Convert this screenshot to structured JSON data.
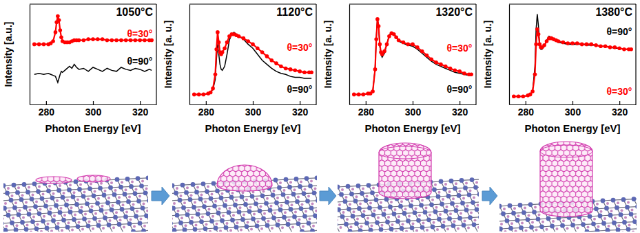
{
  "chart_data": [
    {
      "type": "line",
      "title": "1050°C",
      "x_label": "Photon Energy [eV]",
      "y_label": "Intensity [a.u.]",
      "x": [
        275,
        277,
        279,
        281,
        282,
        283,
        284,
        284.5,
        285,
        285.5,
        286,
        286.5,
        287,
        288,
        289,
        290,
        291,
        292,
        293,
        294,
        296,
        298,
        300,
        302,
        304,
        306,
        308,
        310,
        312,
        314,
        316,
        318,
        320,
        322,
        324,
        325
      ],
      "xlim": [
        273,
        327
      ],
      "xticks": [
        280,
        300,
        320
      ],
      "ylim": [
        0,
        1
      ],
      "tick_labels": "x",
      "series": [
        {
          "name": "θ=30°",
          "color": "#ff0000",
          "marker": "circle",
          "line_style": "solid",
          "values": [
            0.6,
            0.6,
            0.6,
            0.6,
            0.61,
            0.63,
            0.72,
            0.82,
            0.88,
            0.84,
            0.74,
            0.67,
            0.63,
            0.62,
            0.62,
            0.62,
            0.63,
            0.64,
            0.64,
            0.64,
            0.64,
            0.65,
            0.65,
            0.65,
            0.65,
            0.64,
            0.64,
            0.64,
            0.64,
            0.64,
            0.64,
            0.64,
            0.64,
            0.64,
            0.64,
            0.64
          ]
        },
        {
          "name": "θ=90°",
          "color": "#000000",
          "line_style": "solid",
          "values": [
            0.3,
            0.31,
            0.3,
            0.31,
            0.3,
            0.29,
            0.28,
            0.25,
            0.22,
            0.26,
            0.3,
            0.33,
            0.32,
            0.34,
            0.36,
            0.38,
            0.36,
            0.4,
            0.37,
            0.35,
            0.36,
            0.33,
            0.37,
            0.35,
            0.33,
            0.36,
            0.34,
            0.33,
            0.37,
            0.35,
            0.34,
            0.36,
            0.35,
            0.33,
            0.35,
            0.34
          ]
        }
      ]
    },
    {
      "type": "line",
      "title": "1120°C",
      "x_label": "Photon Energy [eV]",
      "y_label": "Intensity [a. u.]",
      "x": [
        275,
        277,
        279,
        281,
        282,
        283,
        284,
        284.5,
        285,
        285.5,
        286,
        286.5,
        287,
        288,
        289,
        290,
        291,
        292,
        293,
        294,
        296,
        298,
        300,
        302,
        304,
        306,
        308,
        310,
        312,
        314,
        316,
        318,
        320,
        322,
        324,
        325
      ],
      "xlim": [
        273,
        327
      ],
      "xticks": [
        280,
        300,
        320
      ],
      "ylim": [
        0,
        1
      ],
      "tick_labels": "x",
      "series": [
        {
          "name": "θ=30°",
          "color": "#ff0000",
          "marker": "circle",
          "line_style": "solid",
          "values": [
            0.1,
            0.1,
            0.1,
            0.11,
            0.12,
            0.16,
            0.3,
            0.55,
            0.72,
            0.62,
            0.52,
            0.5,
            0.52,
            0.56,
            0.62,
            0.68,
            0.7,
            0.7,
            0.69,
            0.68,
            0.66,
            0.63,
            0.6,
            0.56,
            0.52,
            0.48,
            0.44,
            0.41,
            0.38,
            0.36,
            0.35,
            0.34,
            0.33,
            0.32,
            0.32,
            0.32
          ]
        },
        {
          "name": "θ=90°",
          "color": "#000000",
          "line_style": "solid",
          "values": [
            0.1,
            0.1,
            0.1,
            0.11,
            0.12,
            0.15,
            0.25,
            0.45,
            0.6,
            0.5,
            0.4,
            0.35,
            0.34,
            0.38,
            0.5,
            0.64,
            0.7,
            0.72,
            0.7,
            0.68,
            0.65,
            0.6,
            0.56,
            0.5,
            0.44,
            0.4,
            0.36,
            0.33,
            0.31,
            0.3,
            0.28,
            0.27,
            0.27,
            0.26,
            0.26,
            0.26
          ]
        }
      ]
    },
    {
      "type": "line",
      "title": "1320°C",
      "x_label": "Photon Energy [eV]",
      "y_label": "Intensity [a. u.]",
      "x": [
        275,
        277,
        279,
        281,
        282,
        283,
        284,
        284.5,
        285,
        285.5,
        286,
        286.5,
        287,
        288,
        289,
        290,
        291,
        292,
        293,
        294,
        296,
        298,
        300,
        302,
        304,
        306,
        308,
        310,
        312,
        314,
        316,
        318,
        320,
        322,
        324,
        325
      ],
      "xlim": [
        273,
        327
      ],
      "xticks": [
        280,
        300,
        320
      ],
      "ylim": [
        0,
        1
      ],
      "tick_labels": "x",
      "series": [
        {
          "name": "θ=30°",
          "color": "#ff0000",
          "marker": "circle",
          "line_style": "solid",
          "values": [
            0.1,
            0.1,
            0.1,
            0.11,
            0.11,
            0.13,
            0.35,
            0.65,
            0.85,
            0.78,
            0.6,
            0.52,
            0.5,
            0.53,
            0.6,
            0.68,
            0.71,
            0.7,
            0.67,
            0.64,
            0.62,
            0.6,
            0.6,
            0.57,
            0.53,
            0.49,
            0.45,
            0.42,
            0.4,
            0.38,
            0.36,
            0.34,
            0.33,
            0.31,
            0.3,
            0.3
          ]
        },
        {
          "name": "θ=90°",
          "color": "#000000",
          "line_style": "solid",
          "values": [
            0.1,
            0.1,
            0.1,
            0.11,
            0.11,
            0.13,
            0.36,
            0.67,
            0.86,
            0.77,
            0.58,
            0.5,
            0.47,
            0.51,
            0.6,
            0.69,
            0.72,
            0.71,
            0.67,
            0.63,
            0.61,
            0.59,
            0.58,
            0.55,
            0.51,
            0.47,
            0.43,
            0.4,
            0.38,
            0.36,
            0.34,
            0.32,
            0.31,
            0.3,
            0.29,
            0.29
          ]
        }
      ]
    },
    {
      "type": "line",
      "title": "1380°C",
      "x_label": "Photon Energy [eV]",
      "y_label": "Intensity [a. u.]",
      "x": [
        275,
        277,
        279,
        281,
        282,
        283,
        284,
        284.5,
        285,
        285.5,
        286,
        286.5,
        287,
        288,
        289,
        290,
        291,
        292,
        293,
        294,
        296,
        298,
        300,
        302,
        304,
        306,
        308,
        310,
        312,
        314,
        316,
        318,
        320,
        322,
        324,
        325
      ],
      "xlim": [
        273,
        327
      ],
      "xticks": [
        280,
        300,
        320
      ],
      "ylim": [
        0,
        1
      ],
      "tick_labels": "x",
      "series": [
        {
          "name": "θ=30°",
          "color": "#ff0000",
          "marker": "circle",
          "line_style": "solid",
          "values": [
            0.08,
            0.08,
            0.08,
            0.09,
            0.1,
            0.13,
            0.3,
            0.6,
            0.75,
            0.7,
            0.6,
            0.57,
            0.57,
            0.59,
            0.63,
            0.66,
            0.66,
            0.65,
            0.64,
            0.63,
            0.62,
            0.61,
            0.61,
            0.61,
            0.6,
            0.6,
            0.6,
            0.59,
            0.58,
            0.58,
            0.57,
            0.57,
            0.56,
            0.55,
            0.55,
            0.55
          ]
        },
        {
          "name": "θ=90°",
          "color": "#000000",
          "line_style": "solid",
          "values": [
            0.08,
            0.08,
            0.08,
            0.09,
            0.1,
            0.13,
            0.38,
            0.75,
            0.9,
            0.78,
            0.6,
            0.55,
            0.55,
            0.58,
            0.64,
            0.68,
            0.67,
            0.65,
            0.63,
            0.62,
            0.61,
            0.6,
            0.6,
            0.6,
            0.6,
            0.59,
            0.59,
            0.59,
            0.58,
            0.58,
            0.57,
            0.56,
            0.56,
            0.55,
            0.55,
            0.54
          ]
        }
      ]
    }
  ]
}
